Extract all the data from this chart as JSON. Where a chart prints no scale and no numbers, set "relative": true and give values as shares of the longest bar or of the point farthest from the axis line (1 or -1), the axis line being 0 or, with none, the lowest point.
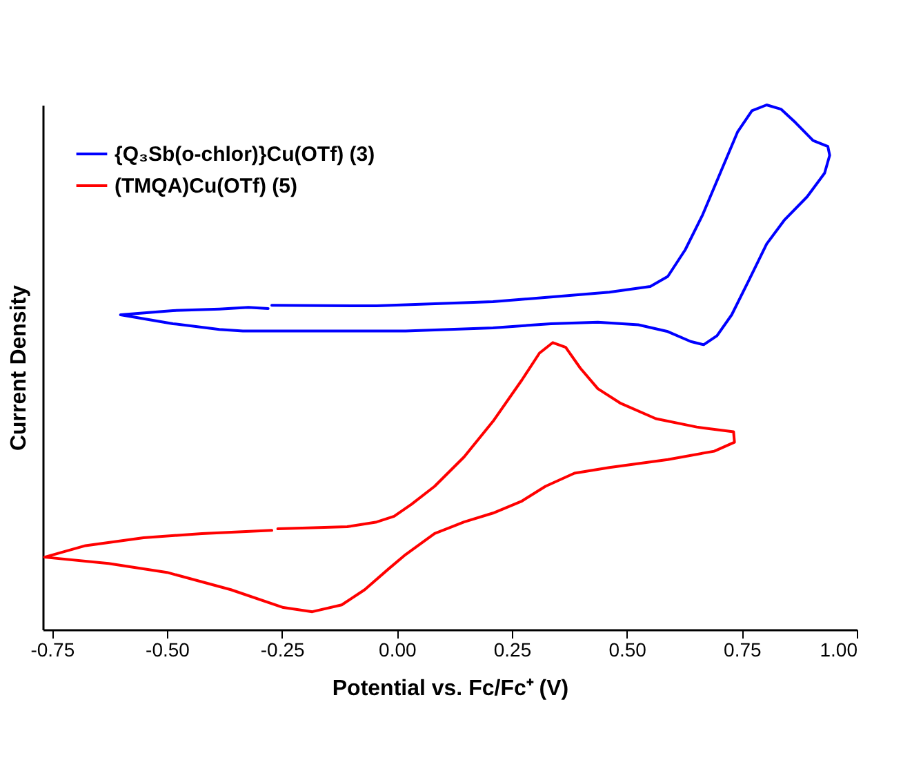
{
  "chart_data": {
    "type": "line",
    "xlabel": "Potential vs. Fc/Fc⁺ (V)",
    "ylabel": "Current Density",
    "relative": true,
    "xlim": [
      -0.77,
      1.0
    ],
    "xticks": [
      -0.75,
      {
        "value": -0.5,
        "label": "-0.50"
      },
      -0.25,
      {
        "value": 0,
        "label": "0.00"
      },
      0.25,
      {
        "value": 0.5,
        "label": "0.50"
      },
      0.75,
      {
        "value": 1,
        "label": "1.00"
      }
    ],
    "grid": false,
    "legend": "top left",
    "marker": "none",
    "line_style": "solid",
    "series": [
      {
        "name": "{Q₃Sb(o-chlor)}Cu(OTf) (3)",
        "color": "#0000ff",
        "x": [
          -0.272,
          -0.044,
          0.209,
          0.335,
          0.462,
          0.551,
          0.589,
          0.627,
          0.665,
          0.703,
          0.741,
          0.772,
          0.804,
          0.835,
          0.867,
          0.905,
          0.937,
          0.941,
          0.93,
          0.892,
          0.842,
          0.804,
          0.766,
          0.728,
          0.696,
          0.667,
          0.639,
          0.589,
          0.525,
          0.437,
          0.335,
          0.209,
          0.019,
          -0.171,
          -0.335,
          -0.386,
          -0.487,
          -0.601,
          -0.487,
          -0.386,
          -0.323,
          -0.28
        ],
        "values": [
          0.618,
          0.617,
          0.625,
          0.634,
          0.643,
          0.654,
          0.673,
          0.724,
          0.791,
          0.87,
          0.949,
          0.989,
          1.0,
          0.992,
          0.966,
          0.932,
          0.921,
          0.904,
          0.87,
          0.825,
          0.78,
          0.735,
          0.667,
          0.6,
          0.56,
          0.543,
          0.549,
          0.568,
          0.581,
          0.586,
          0.583,
          0.575,
          0.569,
          0.569,
          0.569,
          0.572,
          0.583,
          0.6,
          0.608,
          0.611,
          0.614,
          0.612
        ]
      },
      {
        "name": "(TMQA)Cu(OTf) (5)",
        "color": "#ff0000",
        "x": [
          -0.259,
          -0.108,
          -0.044,
          -0.006,
          0.032,
          0.082,
          0.146,
          0.209,
          0.272,
          0.31,
          0.339,
          0.367,
          0.399,
          0.437,
          0.487,
          0.563,
          0.652,
          0.732,
          0.734,
          0.69,
          0.589,
          0.462,
          0.386,
          0.323,
          0.272,
          0.209,
          0.146,
          0.082,
          0.019,
          -0.019,
          -0.07,
          -0.12,
          -0.184,
          -0.247,
          -0.361,
          -0.5,
          -0.627,
          -0.766,
          -0.677,
          -0.551,
          -0.424,
          -0.272
        ],
        "values": [
          0.192,
          0.196,
          0.205,
          0.216,
          0.239,
          0.273,
          0.329,
          0.397,
          0.476,
          0.527,
          0.547,
          0.538,
          0.498,
          0.459,
          0.431,
          0.402,
          0.386,
          0.377,
          0.357,
          0.34,
          0.324,
          0.309,
          0.298,
          0.273,
          0.245,
          0.222,
          0.205,
          0.183,
          0.143,
          0.115,
          0.076,
          0.047,
          0.034,
          0.042,
          0.076,
          0.109,
          0.126,
          0.138,
          0.16,
          0.175,
          0.183,
          0.189
        ]
      }
    ]
  }
}
